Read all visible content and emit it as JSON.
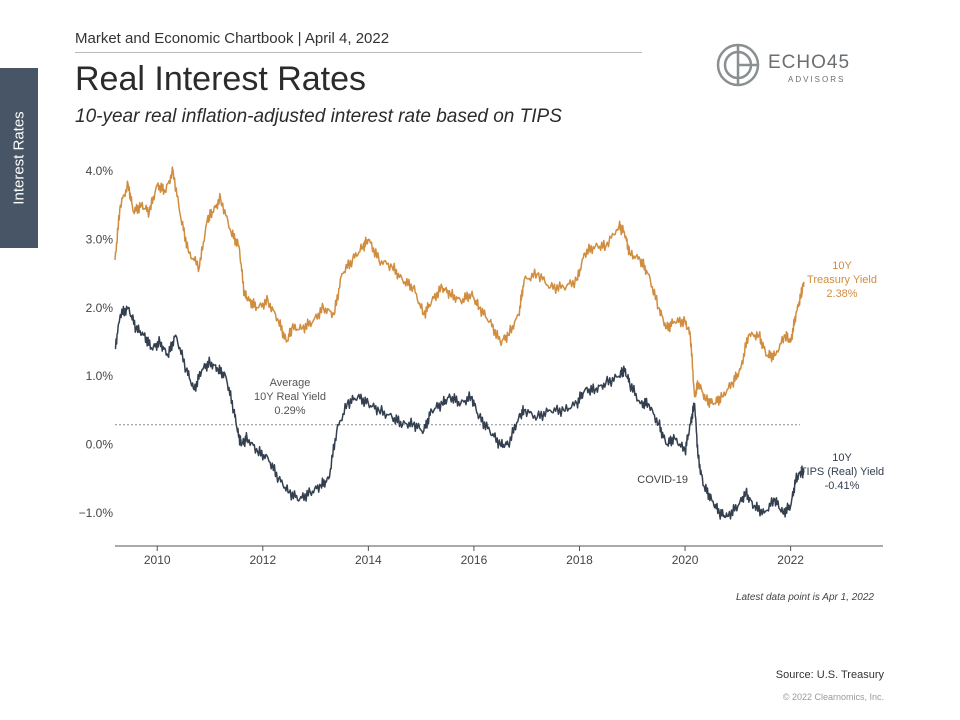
{
  "header": {
    "chartbook": "Market and Economic Chartbook | April 4, 2022",
    "title": "Real Interest Rates",
    "subtitle": "10-year real inflation-adjusted interest rate based on TIPS"
  },
  "side_tab": "Interest Rates",
  "logo": {
    "main": "ECHO45",
    "sub": "ADVISORS"
  },
  "footer": {
    "latest": "Latest data point is Apr 1, 2022",
    "source": "Source: U.S. Treasury",
    "copyright": "© 2022 Clearnomics, Inc."
  },
  "colors": {
    "nominal": "#d18d3f",
    "real": "#34404f",
    "side_tab": "#485566",
    "avg_line": "#8a8f94"
  },
  "chart_data": {
    "type": "line",
    "xlim": [
      2009.2,
      2023.75
    ],
    "ylim": [
      -1.5,
      4.3
    ],
    "yticks": [
      4.0,
      3.0,
      2.0,
      1.0,
      0.0,
      -1.0
    ],
    "ytick_labels": [
      "4.0%",
      "3.0%",
      "2.0%",
      "1.0%",
      "0.0%",
      "−1.0%"
    ],
    "xticks": [
      2010,
      2012,
      2014,
      2016,
      2018,
      2020,
      2022
    ],
    "xtick_labels": [
      "2010",
      "2012",
      "2014",
      "2016",
      "2018",
      "2020",
      "2022"
    ],
    "average": {
      "value": 0.29,
      "label_lines": [
        "Average",
        "10Y Real Yield",
        "0.29%"
      ]
    },
    "annotations": {
      "covid": "COVID-19"
    },
    "series": [
      {
        "name": "10Y Treasury Yield",
        "label_lines": [
          "10Y",
          "Treasury Yield",
          "2.38%"
        ],
        "color": "#d18d3f",
        "x": [
          2009.2,
          2009.3,
          2009.45,
          2009.55,
          2009.7,
          2009.85,
          2010.0,
          2010.15,
          2010.3,
          2010.45,
          2010.6,
          2010.8,
          2010.95,
          2011.05,
          2011.2,
          2011.4,
          2011.55,
          2011.65,
          2011.75,
          2011.9,
          2012.1,
          2012.3,
          2012.45,
          2012.55,
          2012.75,
          2012.95,
          2013.15,
          2013.35,
          2013.5,
          2013.7,
          2013.9,
          2014.0,
          2014.2,
          2014.45,
          2014.65,
          2014.85,
          2015.05,
          2015.2,
          2015.4,
          2015.55,
          2015.75,
          2015.95,
          2016.1,
          2016.3,
          2016.5,
          2016.65,
          2016.85,
          2016.95,
          2017.2,
          2017.45,
          2017.7,
          2017.95,
          2018.1,
          2018.3,
          2018.5,
          2018.75,
          2018.85,
          2018.95,
          2019.15,
          2019.3,
          2019.5,
          2019.65,
          2019.8,
          2020.0,
          2020.1,
          2020.18,
          2020.25,
          2020.4,
          2020.55,
          2020.7,
          2020.9,
          2021.05,
          2021.2,
          2021.4,
          2021.55,
          2021.7,
          2021.9,
          2022.0,
          2022.1,
          2022.2,
          2022.25
        ],
        "values": [
          2.7,
          3.5,
          3.8,
          3.4,
          3.5,
          3.4,
          3.8,
          3.7,
          4.0,
          3.3,
          2.8,
          2.6,
          3.3,
          3.4,
          3.6,
          3.1,
          2.9,
          2.2,
          2.1,
          2.0,
          2.1,
          1.8,
          1.5,
          1.7,
          1.7,
          1.8,
          2.0,
          1.9,
          2.5,
          2.7,
          2.9,
          3.0,
          2.7,
          2.6,
          2.4,
          2.3,
          1.9,
          2.1,
          2.3,
          2.2,
          2.1,
          2.2,
          2.0,
          1.8,
          1.5,
          1.6,
          1.9,
          2.4,
          2.5,
          2.3,
          2.3,
          2.4,
          2.8,
          2.9,
          2.9,
          3.2,
          3.1,
          2.8,
          2.7,
          2.5,
          2.0,
          1.7,
          1.8,
          1.8,
          1.6,
          0.7,
          0.9,
          0.65,
          0.6,
          0.7,
          0.9,
          1.1,
          1.6,
          1.6,
          1.3,
          1.3,
          1.6,
          1.5,
          1.9,
          2.2,
          2.38
        ]
      },
      {
        "name": "10Y TIPS (Real) Yield",
        "label_lines": [
          "10Y",
          "TIPS (Real) Yield",
          "-0.41%"
        ],
        "color": "#34404f",
        "x": [
          2009.2,
          2009.3,
          2009.45,
          2009.6,
          2009.75,
          2009.9,
          2010.05,
          2010.2,
          2010.35,
          2010.55,
          2010.7,
          2010.85,
          2011.0,
          2011.15,
          2011.3,
          2011.45,
          2011.55,
          2011.6,
          2011.7,
          2011.9,
          2012.1,
          2012.3,
          2012.5,
          2012.7,
          2012.9,
          2013.1,
          2013.25,
          2013.4,
          2013.6,
          2013.8,
          2014.0,
          2014.2,
          2014.45,
          2014.65,
          2014.85,
          2015.05,
          2015.2,
          2015.4,
          2015.55,
          2015.75,
          2015.95,
          2016.1,
          2016.3,
          2016.5,
          2016.65,
          2016.85,
          2016.95,
          2017.2,
          2017.45,
          2017.7,
          2017.95,
          2018.1,
          2018.3,
          2018.5,
          2018.75,
          2018.85,
          2018.95,
          2019.15,
          2019.3,
          2019.5,
          2019.65,
          2019.8,
          2020.0,
          2020.1,
          2020.18,
          2020.25,
          2020.35,
          2020.5,
          2020.65,
          2020.8,
          2021.0,
          2021.15,
          2021.3,
          2021.5,
          2021.7,
          2021.85,
          2022.0,
          2022.1,
          2022.2,
          2022.25
        ],
        "values": [
          1.4,
          1.9,
          2.0,
          1.7,
          1.6,
          1.4,
          1.5,
          1.3,
          1.6,
          1.1,
          0.8,
          1.1,
          1.2,
          1.1,
          1.0,
          0.5,
          0.1,
          0.0,
          0.1,
          -0.1,
          -0.2,
          -0.5,
          -0.7,
          -0.8,
          -0.7,
          -0.6,
          -0.5,
          0.2,
          0.6,
          0.7,
          0.6,
          0.5,
          0.4,
          0.3,
          0.3,
          0.2,
          0.5,
          0.6,
          0.7,
          0.6,
          0.7,
          0.4,
          0.2,
          0.0,
          0.0,
          0.4,
          0.5,
          0.4,
          0.5,
          0.5,
          0.6,
          0.8,
          0.8,
          0.9,
          1.0,
          1.1,
          0.9,
          0.6,
          0.6,
          0.3,
          0.0,
          0.1,
          -0.1,
          0.3,
          0.6,
          -0.2,
          -0.6,
          -0.8,
          -1.0,
          -1.05,
          -0.9,
          -0.7,
          -0.9,
          -1.0,
          -0.8,
          -1.0,
          -0.9,
          -0.5,
          -0.4,
          -0.41
        ]
      }
    ]
  }
}
